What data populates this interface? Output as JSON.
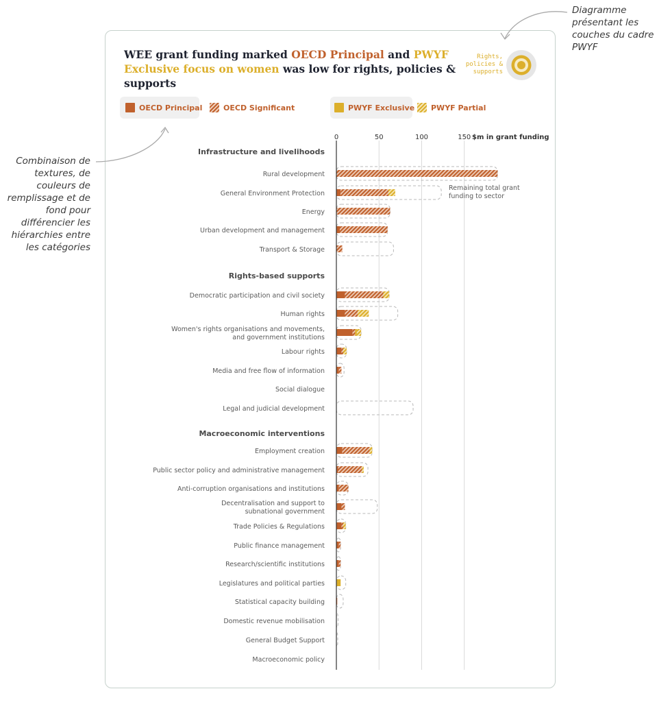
{
  "annotations": {
    "top": "Diagramme présentant les couches du cadre PWYF",
    "left": "Combinaison de textures, de couleurs de remplissage et de fond pour différencier les hiérarchies entre les catégories"
  },
  "header": {
    "title_p1": "WEE grant funding marked ",
    "title_oecd": "OECD Principal",
    "title_p2": " and ",
    "title_pwyf": "PWYF Exclusive focus on women",
    "title_p3": " was low for rights, policies & supports",
    "layers_label": "Rights, policies & supports"
  },
  "legend": {
    "oecd_principal": "OECD Principal",
    "oecd_significant": "OECD Significant",
    "pwyf_exclusive": "PWYF Exclusive",
    "pwyf_partial": "PWYF Partial"
  },
  "colors": {
    "oecd": "#c0612d",
    "pwyf": "#dcaf2b",
    "grid": "#d9d9d9",
    "axis": "#333333",
    "dash": "#b8b8b8",
    "group_text": "#4a4a4a",
    "label_text": "#5a5a5a"
  },
  "chart_data": {
    "type": "bar",
    "orientation": "horizontal",
    "stacked": true,
    "xlabel": "$m in grant funding",
    "xticks": [
      0,
      50,
      100,
      150
    ],
    "xlim": [
      0,
      150
    ],
    "grid": true,
    "remaining_note": "Remaining total grant funding to sector",
    "series": [
      {
        "name": "OECD Principal",
        "key": "op"
      },
      {
        "name": "OECD Significant",
        "key": "os"
      },
      {
        "name": "PWYF Exclusive",
        "key": "pe"
      },
      {
        "name": "PWYF Partial",
        "key": "pp"
      }
    ],
    "groups": [
      {
        "name": "Infrastructure and livelihoods",
        "rows": [
          {
            "label": [
              "Rural development"
            ],
            "op": 0,
            "os": 189,
            "pe": 0,
            "pp": 0,
            "total": 189
          },
          {
            "label": [
              "General Environment Protection"
            ],
            "op": 5,
            "os": 56,
            "pe": 0,
            "pp": 8,
            "total": 123
          },
          {
            "label": [
              "Energy"
            ],
            "op": 0,
            "os": 63,
            "pe": 0,
            "pp": 0,
            "total": 63
          },
          {
            "label": [
              "Urban development and management"
            ],
            "op": 4,
            "os": 56,
            "pe": 0,
            "pp": 0,
            "total": 60
          },
          {
            "label": [
              "Transport & Storage"
            ],
            "op": 0,
            "os": 7,
            "pe": 0,
            "pp": 0,
            "total": 67
          }
        ]
      },
      {
        "name": "Rights-based supports",
        "rows": [
          {
            "label": [
              "Democratic participation and civil society"
            ],
            "op": 10,
            "os": 45,
            "pe": 0,
            "pp": 7,
            "total": 62
          },
          {
            "label": [
              "Human rights"
            ],
            "op": 10,
            "os": 15,
            "pe": 0,
            "pp": 13,
            "total": 72
          },
          {
            "label": [
              "Women's rights organisations and movements,",
              "and government institutions"
            ],
            "op": 19,
            "os": 3,
            "pe": 2,
            "pp": 5,
            "total": 29
          },
          {
            "label": [
              "Labour rights"
            ],
            "op": 6,
            "os": 2,
            "pe": 0,
            "pp": 4,
            "total": 12
          },
          {
            "label": [
              "Media and free flow of information"
            ],
            "op": 3,
            "os": 3,
            "pe": 0,
            "pp": 0,
            "total": 9
          },
          {
            "label": [
              "Social dialogue"
            ],
            "op": 0,
            "os": 0,
            "pe": 0,
            "pp": 0,
            "total": 0
          },
          {
            "label": [
              "Legal and judicial development"
            ],
            "op": 0,
            "os": 0,
            "pe": 0,
            "pp": 0,
            "total": 90
          }
        ]
      },
      {
        "name": "Macroeconomic interventions",
        "rows": [
          {
            "label": [
              "Employment creation"
            ],
            "op": 7,
            "os": 32,
            "pe": 0,
            "pp": 3,
            "total": 42
          },
          {
            "label": [
              "Public sector policy and administrative management"
            ],
            "op": 2,
            "os": 28,
            "pe": 0,
            "pp": 2,
            "total": 37
          },
          {
            "label": [
              "Anti-corruption organisations and institutions"
            ],
            "op": 3,
            "os": 11,
            "pe": 0,
            "pp": 0,
            "total": 14
          },
          {
            "label": [
              "Decentralisation and support to",
              "subnational government"
            ],
            "op": 6,
            "os": 4,
            "pe": 0,
            "pp": 0,
            "total": 48
          },
          {
            "label": [
              "Trade Policies & Regulations"
            ],
            "op": 6,
            "os": 2,
            "pe": 0,
            "pp": 3,
            "total": 11
          },
          {
            "label": [
              "Public finance management"
            ],
            "op": 3,
            "os": 2,
            "pe": 0,
            "pp": 0,
            "total": 5
          },
          {
            "label": [
              "Research/scientific institutions"
            ],
            "op": 3,
            "os": 2,
            "pe": 0,
            "pp": 0,
            "total": 5
          },
          {
            "label": [
              "Legislatures and political parties"
            ],
            "op": 0,
            "os": 0,
            "pe": 5,
            "pp": 0,
            "total": 11
          },
          {
            "label": [
              "Statistical capacity building"
            ],
            "op": 1,
            "os": 0,
            "pe": 0,
            "pp": 0,
            "total": 8
          },
          {
            "label": [
              "Domestic revenue mobilisation"
            ],
            "op": 0,
            "os": 0,
            "pe": 0,
            "pp": 0,
            "total": 2
          },
          {
            "label": [
              "General Budget Support"
            ],
            "op": 0,
            "os": 0,
            "pe": 0,
            "pp": 0,
            "total": 1
          },
          {
            "label": [
              "Macroeconomic policy"
            ],
            "op": 0,
            "os": 0,
            "pe": 0,
            "pp": 0,
            "total": 0
          }
        ]
      }
    ]
  }
}
